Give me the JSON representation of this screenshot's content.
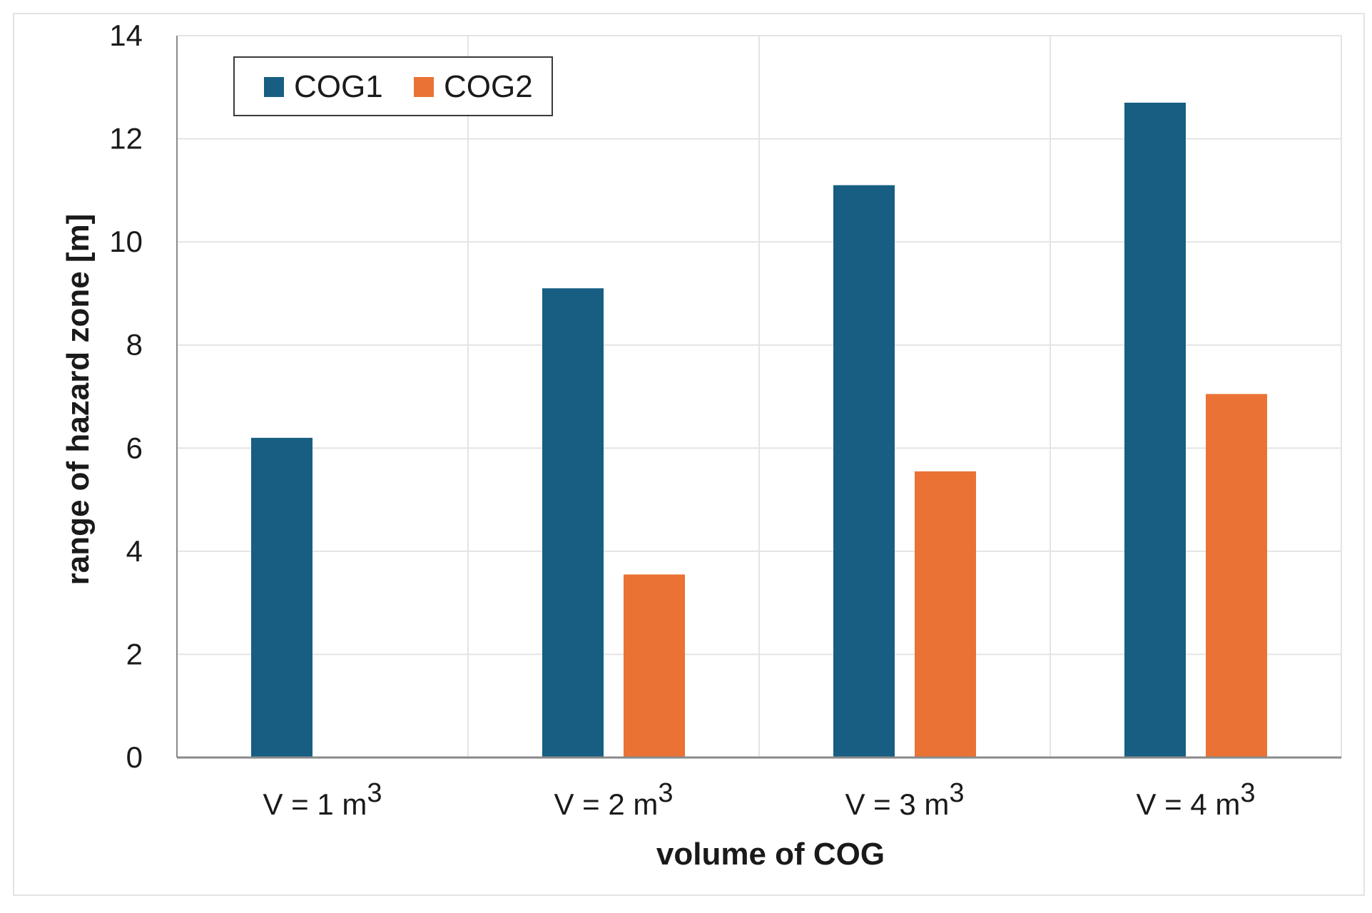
{
  "chart_data": {
    "type": "bar",
    "categories": [
      {
        "text": "V = 1 m",
        "sup": "3"
      },
      {
        "text": "V = 2 m",
        "sup": "3"
      },
      {
        "text": "V = 3 m",
        "sup": "3"
      },
      {
        "text": "V = 4 m",
        "sup": "3"
      }
    ],
    "series": [
      {
        "name": "COG1",
        "color": "#175e82",
        "values": [
          6.2,
          9.1,
          11.1,
          12.7
        ]
      },
      {
        "name": "COG2",
        "color": "#ea7234",
        "values": [
          null,
          3.55,
          5.55,
          7.05
        ]
      }
    ],
    "xlabel": "volume of COG",
    "ylabel": "range of hazard zone [m]",
    "ylim": [
      0,
      14
    ],
    "yticks": [
      0,
      2,
      4,
      6,
      8,
      10,
      12,
      14
    ],
    "grid": true,
    "legend_position": "top-left"
  }
}
